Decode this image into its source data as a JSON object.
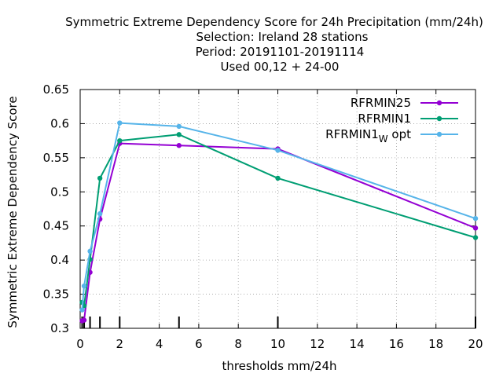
{
  "chart_data": {
    "type": "line",
    "title_lines": [
      "Symmetric Extreme Dependency Score  for 24h Precipitation (mm/24h)",
      "Selection: Ireland     28 stations",
      "Period: 20191101-20191114",
      "Used  00,12  + 24-00"
    ],
    "xlabel": "thresholds mm/24h",
    "ylabel": "Symmetric Extreme Dependency Score",
    "xlim": [
      0,
      20
    ],
    "ylim": [
      0.3,
      0.65
    ],
    "xticks": [
      0,
      2,
      4,
      6,
      8,
      10,
      12,
      14,
      16,
      18,
      20
    ],
    "yticks": [
      0.3,
      0.35,
      0.4,
      0.45,
      0.5,
      0.55,
      0.6,
      0.65
    ],
    "ytick_labels": [
      "0.3",
      "0.35",
      "0.4",
      "0.45",
      "0.5",
      "0.55",
      "0.6",
      "0.65"
    ],
    "threshold_marks": [
      0.1,
      0.2,
      0.5,
      1,
      2,
      5,
      10,
      20
    ],
    "legend_position": "top-right",
    "grid": "dotted",
    "series": [
      {
        "name": "RFRMIN25",
        "color": "#9400d3",
        "x": [
          0.1,
          0.2,
          0.5,
          1,
          2,
          5,
          10,
          20
        ],
        "y": [
          0.311,
          0.312,
          0.382,
          0.46,
          0.571,
          0.568,
          0.563,
          0.447
        ]
      },
      {
        "name": "RFRMIN1",
        "color": "#009e73",
        "x": [
          0.1,
          0.2,
          0.5,
          1,
          2,
          5,
          10,
          20
        ],
        "y": [
          0.338,
          0.333,
          0.401,
          0.52,
          0.575,
          0.584,
          0.52,
          0.433
        ]
      },
      {
        "name": "RFRMIN1",
        "name_sub": "W",
        "name_suffix": "opt",
        "color": "#56b4e9",
        "x": [
          0.1,
          0.2,
          0.5,
          1,
          2,
          5,
          10,
          20
        ],
        "y": [
          0.327,
          0.362,
          0.413,
          0.468,
          0.601,
          0.596,
          0.561,
          0.461
        ]
      }
    ]
  }
}
